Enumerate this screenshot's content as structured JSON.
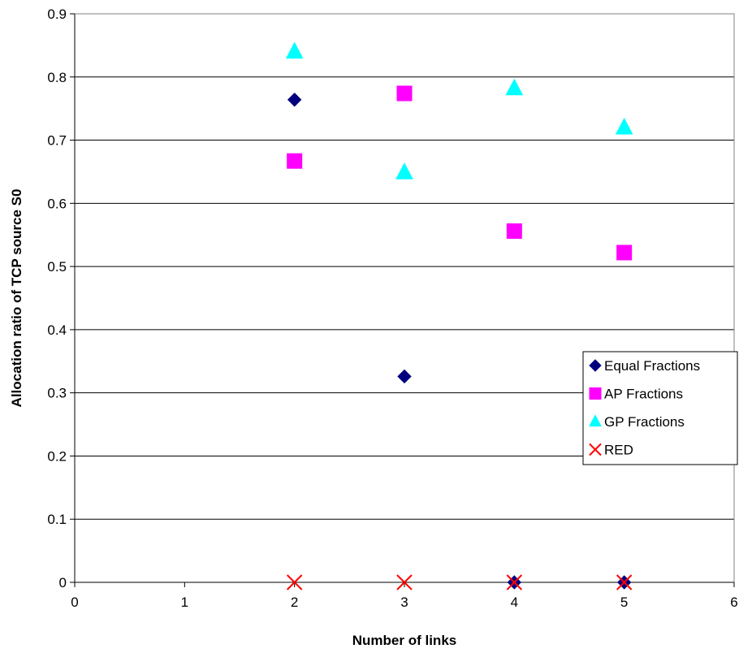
{
  "chart_data": {
    "type": "scatter",
    "title": "",
    "xlabel": "Number of links",
    "ylabel": "Allocation ratio of TCP source S0",
    "xlim": [
      0,
      6
    ],
    "ylim": [
      0,
      0.9
    ],
    "x_ticks": [
      "0",
      "1",
      "2",
      "3",
      "4",
      "5",
      "6"
    ],
    "y_ticks": [
      "0",
      "0.1",
      "0.2",
      "0.3",
      "0.4",
      "0.5",
      "0.6",
      "0.7",
      "0.8",
      "0.9"
    ],
    "grid": "horizontal",
    "legend_position": "right",
    "series": [
      {
        "name": "Equal Fractions",
        "marker": "diamond",
        "color": "#00007f",
        "points": [
          [
            2,
            0.764
          ],
          [
            3,
            0.326
          ],
          [
            4,
            0
          ],
          [
            5,
            0
          ]
        ]
      },
      {
        "name": "AP Fractions",
        "marker": "square",
        "color": "#ff00ff",
        "points": [
          [
            2,
            0.667
          ],
          [
            3,
            0.774
          ],
          [
            4,
            0.556
          ],
          [
            5,
            0.522
          ]
        ]
      },
      {
        "name": "GP Fractions",
        "marker": "triangle",
        "color": "#00ffff",
        "points": [
          [
            2,
            0.84
          ],
          [
            3,
            0.649
          ],
          [
            4,
            0.782
          ],
          [
            5,
            0.72
          ]
        ]
      },
      {
        "name": "RED",
        "marker": "x",
        "color": "#ff0000",
        "points": [
          [
            2,
            0
          ],
          [
            3,
            0
          ],
          [
            4,
            0
          ],
          [
            5,
            0
          ]
        ]
      }
    ]
  }
}
